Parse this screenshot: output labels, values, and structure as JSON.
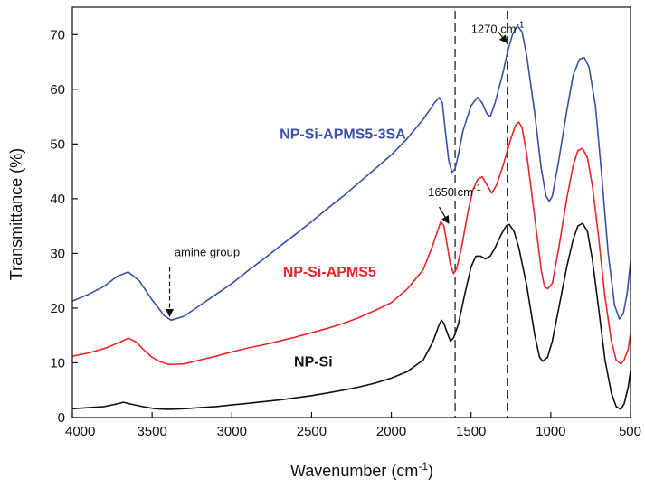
{
  "chart_data": {
    "type": "line",
    "title": "",
    "xlabel": "Wavenumber (cm",
    "xlabel_sup": "-1",
    "xlabel_tail": ")",
    "ylabel": "Transmittance (%)",
    "xlim": [
      4000,
      500
    ],
    "x_reversed": true,
    "ylim": [
      0,
      75
    ],
    "grid": false,
    "x_ticks": [
      4000,
      3500,
      3000,
      2500,
      2000,
      1500,
      1000,
      500
    ],
    "y_ticks": [
      0,
      10,
      20,
      30,
      40,
      50,
      60,
      70
    ],
    "series": [
      {
        "name": "NP-Si-APMS5-3SA",
        "color": "#3b4fa8",
        "label_at": [
          2700,
          51
        ],
        "points": [
          [
            4000,
            21.3
          ],
          [
            3900,
            22.5
          ],
          [
            3800,
            24.0
          ],
          [
            3720,
            25.8
          ],
          [
            3650,
            26.6
          ],
          [
            3580,
            25.0
          ],
          [
            3500,
            21.5
          ],
          [
            3420,
            18.5
          ],
          [
            3380,
            17.8
          ],
          [
            3300,
            18.5
          ],
          [
            3200,
            20.5
          ],
          [
            3100,
            22.5
          ],
          [
            3000,
            24.5
          ],
          [
            2900,
            26.8
          ],
          [
            2800,
            29.0
          ],
          [
            2700,
            31.3
          ],
          [
            2600,
            33.5
          ],
          [
            2500,
            35.8
          ],
          [
            2400,
            38.2
          ],
          [
            2300,
            40.5
          ],
          [
            2200,
            43.0
          ],
          [
            2100,
            45.5
          ],
          [
            2000,
            48.0
          ],
          [
            1900,
            51.0
          ],
          [
            1800,
            54.5
          ],
          [
            1730,
            57.5
          ],
          [
            1700,
            58.5
          ],
          [
            1680,
            57.5
          ],
          [
            1660,
            52.0
          ],
          [
            1640,
            47.0
          ],
          [
            1620,
            44.8
          ],
          [
            1600,
            45.5
          ],
          [
            1580,
            48.0
          ],
          [
            1550,
            52.5
          ],
          [
            1500,
            57.0
          ],
          [
            1460,
            58.5
          ],
          [
            1430,
            57.5
          ],
          [
            1400,
            55.5
          ],
          [
            1380,
            55.0
          ],
          [
            1350,
            57.5
          ],
          [
            1300,
            63.0
          ],
          [
            1270,
            67.0
          ],
          [
            1240,
            70.0
          ],
          [
            1210,
            71.6
          ],
          [
            1180,
            70.5
          ],
          [
            1150,
            66.0
          ],
          [
            1100,
            55.5
          ],
          [
            1060,
            45.5
          ],
          [
            1030,
            40.5
          ],
          [
            1010,
            39.5
          ],
          [
            990,
            40.5
          ],
          [
            950,
            47.0
          ],
          [
            900,
            56.0
          ],
          [
            860,
            62.5
          ],
          [
            820,
            65.5
          ],
          [
            790,
            65.8
          ],
          [
            760,
            64.0
          ],
          [
            720,
            57.0
          ],
          [
            680,
            44.0
          ],
          [
            640,
            30.0
          ],
          [
            600,
            20.5
          ],
          [
            570,
            18.0
          ],
          [
            545,
            19.0
          ],
          [
            520,
            23.0
          ],
          [
            500,
            28.5
          ]
        ]
      },
      {
        "name": "NP-Si-APMS5",
        "color": "#e8252a",
        "label_at": [
          2680,
          25.8
        ],
        "points": [
          [
            4000,
            11.2
          ],
          [
            3900,
            11.8
          ],
          [
            3800,
            12.6
          ],
          [
            3700,
            13.8
          ],
          [
            3650,
            14.5
          ],
          [
            3600,
            13.8
          ],
          [
            3550,
            12.3
          ],
          [
            3500,
            11.0
          ],
          [
            3450,
            10.2
          ],
          [
            3400,
            9.7
          ],
          [
            3300,
            9.8
          ],
          [
            3200,
            10.5
          ],
          [
            3100,
            11.2
          ],
          [
            3000,
            12.0
          ],
          [
            2900,
            12.7
          ],
          [
            2800,
            13.3
          ],
          [
            2700,
            14.0
          ],
          [
            2600,
            14.7
          ],
          [
            2500,
            15.5
          ],
          [
            2400,
            16.3
          ],
          [
            2300,
            17.2
          ],
          [
            2200,
            18.3
          ],
          [
            2100,
            19.6
          ],
          [
            2000,
            21.0
          ],
          [
            1900,
            23.5
          ],
          [
            1800,
            27.0
          ],
          [
            1740,
            31.5
          ],
          [
            1700,
            35.0
          ],
          [
            1690,
            35.8
          ],
          [
            1670,
            35.0
          ],
          [
            1650,
            31.5
          ],
          [
            1630,
            28.0
          ],
          [
            1610,
            26.3
          ],
          [
            1590,
            27.2
          ],
          [
            1560,
            31.0
          ],
          [
            1520,
            37.5
          ],
          [
            1490,
            41.5
          ],
          [
            1460,
            43.5
          ],
          [
            1430,
            44.0
          ],
          [
            1400,
            42.5
          ],
          [
            1370,
            41.0
          ],
          [
            1340,
            42.5
          ],
          [
            1300,
            46.0
          ],
          [
            1250,
            51.0
          ],
          [
            1220,
            53.5
          ],
          [
            1200,
            54.0
          ],
          [
            1180,
            53.0
          ],
          [
            1150,
            48.0
          ],
          [
            1100,
            36.5
          ],
          [
            1060,
            27.0
          ],
          [
            1040,
            24.0
          ],
          [
            1020,
            23.5
          ],
          [
            990,
            24.5
          ],
          [
            950,
            31.0
          ],
          [
            900,
            40.0
          ],
          [
            860,
            46.0
          ],
          [
            830,
            48.8
          ],
          [
            800,
            49.2
          ],
          [
            770,
            47.5
          ],
          [
            740,
            42.5
          ],
          [
            700,
            33.0
          ],
          [
            660,
            22.0
          ],
          [
            620,
            14.0
          ],
          [
            590,
            10.5
          ],
          [
            560,
            9.8
          ],
          [
            540,
            10.5
          ],
          [
            515,
            12.5
          ],
          [
            500,
            15.3
          ]
        ]
      },
      {
        "name": "NP-Si",
        "color": "#111111",
        "label_at": [
          2610,
          9.3
        ],
        "points": [
          [
            4000,
            1.6
          ],
          [
            3900,
            1.8
          ],
          [
            3800,
            2.0
          ],
          [
            3720,
            2.5
          ],
          [
            3680,
            2.8
          ],
          [
            3640,
            2.5
          ],
          [
            3560,
            2.0
          ],
          [
            3480,
            1.6
          ],
          [
            3400,
            1.5
          ],
          [
            3300,
            1.6
          ],
          [
            3200,
            1.8
          ],
          [
            3100,
            2.0
          ],
          [
            3000,
            2.3
          ],
          [
            2900,
            2.6
          ],
          [
            2800,
            2.9
          ],
          [
            2700,
            3.2
          ],
          [
            2600,
            3.6
          ],
          [
            2500,
            4.0
          ],
          [
            2400,
            4.5
          ],
          [
            2300,
            5.0
          ],
          [
            2200,
            5.6
          ],
          [
            2100,
            6.3
          ],
          [
            2000,
            7.2
          ],
          [
            1900,
            8.4
          ],
          [
            1800,
            10.5
          ],
          [
            1740,
            13.8
          ],
          [
            1700,
            17.0
          ],
          [
            1685,
            17.8
          ],
          [
            1670,
            17.2
          ],
          [
            1650,
            15.5
          ],
          [
            1630,
            14.0
          ],
          [
            1610,
            14.5
          ],
          [
            1580,
            17.0
          ],
          [
            1540,
            22.5
          ],
          [
            1500,
            27.5
          ],
          [
            1470,
            29.5
          ],
          [
            1440,
            29.5
          ],
          [
            1410,
            29.0
          ],
          [
            1380,
            29.5
          ],
          [
            1350,
            31.0
          ],
          [
            1310,
            33.5
          ],
          [
            1280,
            35.0
          ],
          [
            1260,
            35.3
          ],
          [
            1230,
            34.0
          ],
          [
            1200,
            31.0
          ],
          [
            1150,
            24.0
          ],
          [
            1100,
            15.0
          ],
          [
            1070,
            11.0
          ],
          [
            1050,
            10.3
          ],
          [
            1020,
            11.0
          ],
          [
            990,
            14.0
          ],
          [
            950,
            20.0
          ],
          [
            900,
            27.5
          ],
          [
            860,
            32.5
          ],
          [
            830,
            35.0
          ],
          [
            800,
            35.5
          ],
          [
            770,
            34.0
          ],
          [
            740,
            29.0
          ],
          [
            700,
            20.0
          ],
          [
            660,
            10.5
          ],
          [
            620,
            4.5
          ],
          [
            590,
            2.0
          ],
          [
            560,
            1.5
          ],
          [
            540,
            2.5
          ],
          [
            515,
            5.5
          ],
          [
            500,
            8.5
          ]
        ]
      }
    ],
    "annotations": [
      {
        "text": "amine group",
        "at": [
          3360,
          29.5
        ],
        "arrow_from": [
          3390,
          27.5
        ],
        "arrow_to": [
          3390,
          18.5
        ]
      },
      {
        "text": "1650 cm",
        "sup": "-1",
        "at": [
          1770,
          40.5
        ],
        "arrow_from": [
          1700,
          38.5
        ],
        "arrow_to": [
          1640,
          35.5
        ]
      },
      {
        "text": "1270 cm",
        "sup": "-1",
        "at": [
          1500,
          70.3
        ],
        "arrow_from": [
          1330,
          70.5
        ],
        "arrow_to": [
          1275,
          68.5
        ]
      }
    ],
    "vlines": [
      1600,
      1270
    ]
  }
}
